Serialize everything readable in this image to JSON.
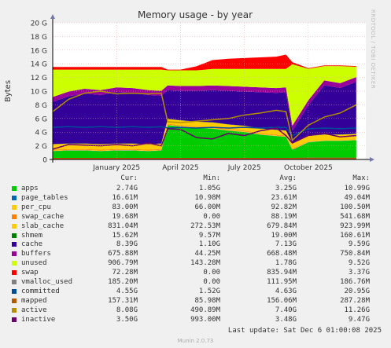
{
  "chart_data": {
    "type": "area",
    "title": "Memory usage - by year",
    "ylabel": "Bytes",
    "ylim": [
      0,
      20
    ],
    "y_unit": "G",
    "y_ticks": [
      "0",
      "2 G",
      "4 G",
      "6 G",
      "8 G",
      "10 G",
      "12 G",
      "14 G",
      "16 G",
      "18 G",
      "20 G"
    ],
    "x_ticks": [
      "January 2025",
      "April 2025",
      "July 2025",
      "October 2025"
    ],
    "x_tick_months": [
      2.0,
      4.0,
      6.0,
      8.0
    ],
    "x_months": [
      0,
      0.5,
      1.0,
      1.5,
      2.0,
      2.5,
      3.0,
      3.4,
      3.6,
      4.0,
      4.5,
      5.0,
      5.5,
      6.0,
      6.5,
      7.0,
      7.3,
      7.5,
      8.0,
      8.5,
      9.0,
      9.5
    ],
    "x_range": [
      0,
      9.8
    ],
    "grid": true,
    "series": [
      {
        "name": "apps",
        "color": "#00cc00",
        "values": [
          1.2,
          1.3,
          1.3,
          1.2,
          1.3,
          1.3,
          1.2,
          1.3,
          5.0,
          4.8,
          4.6,
          4.5,
          4.2,
          4.0,
          3.6,
          3.4,
          3.3,
          1.4,
          2.5,
          2.7,
          2.7,
          2.8
        ]
      },
      {
        "name": "page_tables",
        "color": "#0066b3",
        "values": [
          0.03,
          0.03,
          0.03,
          0.03,
          0.03,
          0.03,
          0.03,
          0.03,
          0.03,
          0.03,
          0.03,
          0.03,
          0.03,
          0.03,
          0.03,
          0.03,
          0.03,
          0.03,
          0.03,
          0.03,
          0.03,
          0.03
        ]
      },
      {
        "name": "per_cpu",
        "color": "#ffcc00",
        "values": [
          0.09,
          0.09,
          0.09,
          0.09,
          0.09,
          0.09,
          0.09,
          0.09,
          0.09,
          0.09,
          0.09,
          0.09,
          0.09,
          0.09,
          0.09,
          0.09,
          0.09,
          0.09,
          0.09,
          0.09,
          0.09,
          0.09
        ]
      },
      {
        "name": "swap_cache",
        "color": "#ff8000",
        "values": [
          0.1,
          0.1,
          0.1,
          0.1,
          0.1,
          0.1,
          0.1,
          0.1,
          0.1,
          0.1,
          0.1,
          0.1,
          0.1,
          0.1,
          0.1,
          0.1,
          0.1,
          0.1,
          0.02,
          0.02,
          0.02,
          0.02
        ]
      },
      {
        "name": "slab_cache",
        "color": "#ffcc00",
        "values": [
          0.8,
          0.8,
          0.8,
          0.8,
          0.8,
          0.8,
          0.8,
          0.8,
          0.7,
          0.7,
          0.7,
          0.7,
          0.7,
          0.7,
          0.7,
          0.7,
          0.7,
          0.8,
          0.8,
          0.8,
          0.8,
          0.8
        ]
      },
      {
        "name": "shmem",
        "color": "#008000",
        "values": [
          0.02,
          0.02,
          0.02,
          0.02,
          0.02,
          0.02,
          0.02,
          0.02,
          0.02,
          0.02,
          0.02,
          0.02,
          0.02,
          0.02,
          0.02,
          0.02,
          0.02,
          0.02,
          0.02,
          0.02,
          0.02,
          0.02
        ]
      },
      {
        "name": "cache",
        "color": "#330099",
        "values": [
          6.2,
          6.9,
          7.3,
          7.2,
          7.5,
          7.4,
          7.2,
          7.0,
          4.2,
          4.3,
          4.5,
          4.7,
          4.9,
          5.0,
          5.3,
          5.4,
          5.6,
          1.8,
          4.5,
          7.2,
          6.8,
          7.6
        ]
      },
      {
        "name": "buffers",
        "color": "#990099",
        "values": [
          0.7,
          0.7,
          0.7,
          0.7,
          0.7,
          0.7,
          0.7,
          0.7,
          0.7,
          0.7,
          0.7,
          0.7,
          0.7,
          0.7,
          0.7,
          0.7,
          0.7,
          0.7,
          0.7,
          0.7,
          0.7,
          0.7
        ]
      },
      {
        "name": "unused",
        "color": "#ccff00",
        "values": [
          4.0,
          3.2,
          2.8,
          3.0,
          2.6,
          2.7,
          3.0,
          3.1,
          2.2,
          2.3,
          2.3,
          2.4,
          2.5,
          2.6,
          2.7,
          2.8,
          2.7,
          9.0,
          4.6,
          2.1,
          2.5,
          1.5
        ]
      },
      {
        "name": "swap",
        "color": "#ff0000",
        "values": [
          0.4,
          0.4,
          0.4,
          0.4,
          0.4,
          0.4,
          0.4,
          0.4,
          0.1,
          0.1,
          0.6,
          1.3,
          1.5,
          1.6,
          1.7,
          1.8,
          2.1,
          0.3,
          0.1,
          0.1,
          0.1,
          0.1
        ]
      }
    ],
    "line_series": [
      {
        "name": "vmalloc_used",
        "color": "#808080",
        "values": [
          0.15,
          0.15,
          0.15,
          0.15,
          0.15,
          0.15,
          0.15,
          0.15,
          0.15,
          0.15,
          0.15,
          0.15,
          0.15,
          0.15,
          0.15,
          0.15,
          0.15,
          0.15,
          0.18,
          0.18,
          0.18,
          0.18
        ]
      },
      {
        "name": "committed",
        "color": "#004d99",
        "values": [
          4.7,
          4.8,
          4.7,
          4.8,
          4.7,
          4.8,
          4.7,
          4.8,
          4.6,
          4.7,
          4.6,
          4.7,
          4.6,
          4.7,
          4.6,
          4.7,
          4.7,
          3.5,
          4.5,
          4.6,
          4.5,
          4.6
        ]
      },
      {
        "name": "mapped",
        "color": "#b35a00",
        "values": [
          0.15,
          0.15,
          0.15,
          0.15,
          0.15,
          0.15,
          0.15,
          0.15,
          0.15,
          0.15,
          0.15,
          0.15,
          0.15,
          0.15,
          0.15,
          0.15,
          0.15,
          0.15,
          0.16,
          0.16,
          0.16,
          0.16
        ]
      },
      {
        "name": "active",
        "color": "#b38f00",
        "values": [
          7.0,
          8.8,
          9.7,
          10.0,
          9.6,
          9.7,
          9.6,
          9.7,
          5.5,
          5.4,
          5.6,
          5.8,
          6.0,
          6.5,
          6.8,
          7.2,
          7.0,
          2.8,
          5.0,
          6.2,
          6.8,
          8.0
        ]
      },
      {
        "name": "inactive",
        "color": "#6b006b",
        "values": [
          1.5,
          2.2,
          2.1,
          2.0,
          2.2,
          2.0,
          2.4,
          2.0,
          4.5,
          4.4,
          3.2,
          3.0,
          3.8,
          3.5,
          4.2,
          4.6,
          3.5,
          2.4,
          3.5,
          3.8,
          3.3,
          3.5
        ]
      }
    ]
  },
  "legend": {
    "headers": {
      "cur": "Cur:",
      "min": "Min:",
      "avg": "Avg:",
      "max": "Max:"
    },
    "rows": [
      {
        "name": "apps",
        "color": "#00cc00",
        "cur": "2.74G",
        "min": "1.05G",
        "avg": "3.25G",
        "max": "10.99G"
      },
      {
        "name": "page_tables",
        "color": "#0066b3",
        "cur": "16.61M",
        "min": "10.98M",
        "avg": "23.61M",
        "max": "49.04M"
      },
      {
        "name": "per_cpu",
        "color": "#ffcc00",
        "cur": "83.00M",
        "min": "66.00M",
        "avg": "92.82M",
        "max": "100.50M"
      },
      {
        "name": "swap_cache",
        "color": "#ff8000",
        "cur": "19.68M",
        "min": "0.00",
        "avg": "88.19M",
        "max": "541.68M"
      },
      {
        "name": "slab_cache",
        "color": "#ffcc00",
        "cur": "831.04M",
        "min": "272.53M",
        "avg": "679.84M",
        "max": "923.99M"
      },
      {
        "name": "shmem",
        "color": "#008000",
        "cur": "15.62M",
        "min": "9.57M",
        "avg": "19.00M",
        "max": "160.61M"
      },
      {
        "name": "cache",
        "color": "#330099",
        "cur": "8.39G",
        "min": "1.10G",
        "avg": "7.13G",
        "max": "9.59G"
      },
      {
        "name": "buffers",
        "color": "#990099",
        "cur": "675.88M",
        "min": "44.25M",
        "avg": "668.48M",
        "max": "750.84M"
      },
      {
        "name": "unused",
        "color": "#ccff00",
        "cur": "906.79M",
        "min": "143.28M",
        "avg": "1.78G",
        "max": "9.52G"
      },
      {
        "name": "swap",
        "color": "#ff0000",
        "cur": "72.28M",
        "min": "0.00",
        "avg": "835.94M",
        "max": "3.37G"
      },
      {
        "name": "vmalloc_used",
        "color": "#808080",
        "cur": "185.20M",
        "min": "0.00",
        "avg": "111.95M",
        "max": "186.76M"
      },
      {
        "name": "committed",
        "color": "#004d99",
        "cur": "4.55G",
        "min": "1.52G",
        "avg": "4.63G",
        "max": "20.95G"
      },
      {
        "name": "mapped",
        "color": "#b35a00",
        "cur": "157.31M",
        "min": "85.98M",
        "avg": "156.06M",
        "max": "287.28M"
      },
      {
        "name": "active",
        "color": "#b38f00",
        "cur": "8.08G",
        "min": "490.89M",
        "avg": "7.40G",
        "max": "11.26G"
      },
      {
        "name": "inactive",
        "color": "#6b006b",
        "cur": "3.50G",
        "min": "993.00M",
        "avg": "3.48G",
        "max": "9.47G"
      }
    ]
  },
  "footer": {
    "last_update": "Last update: Sat Dec  6 01:00:08 2025",
    "munin_version": "Munin 2.0.73",
    "watermark": "RRDTOOL / TOBI OETIKER"
  }
}
